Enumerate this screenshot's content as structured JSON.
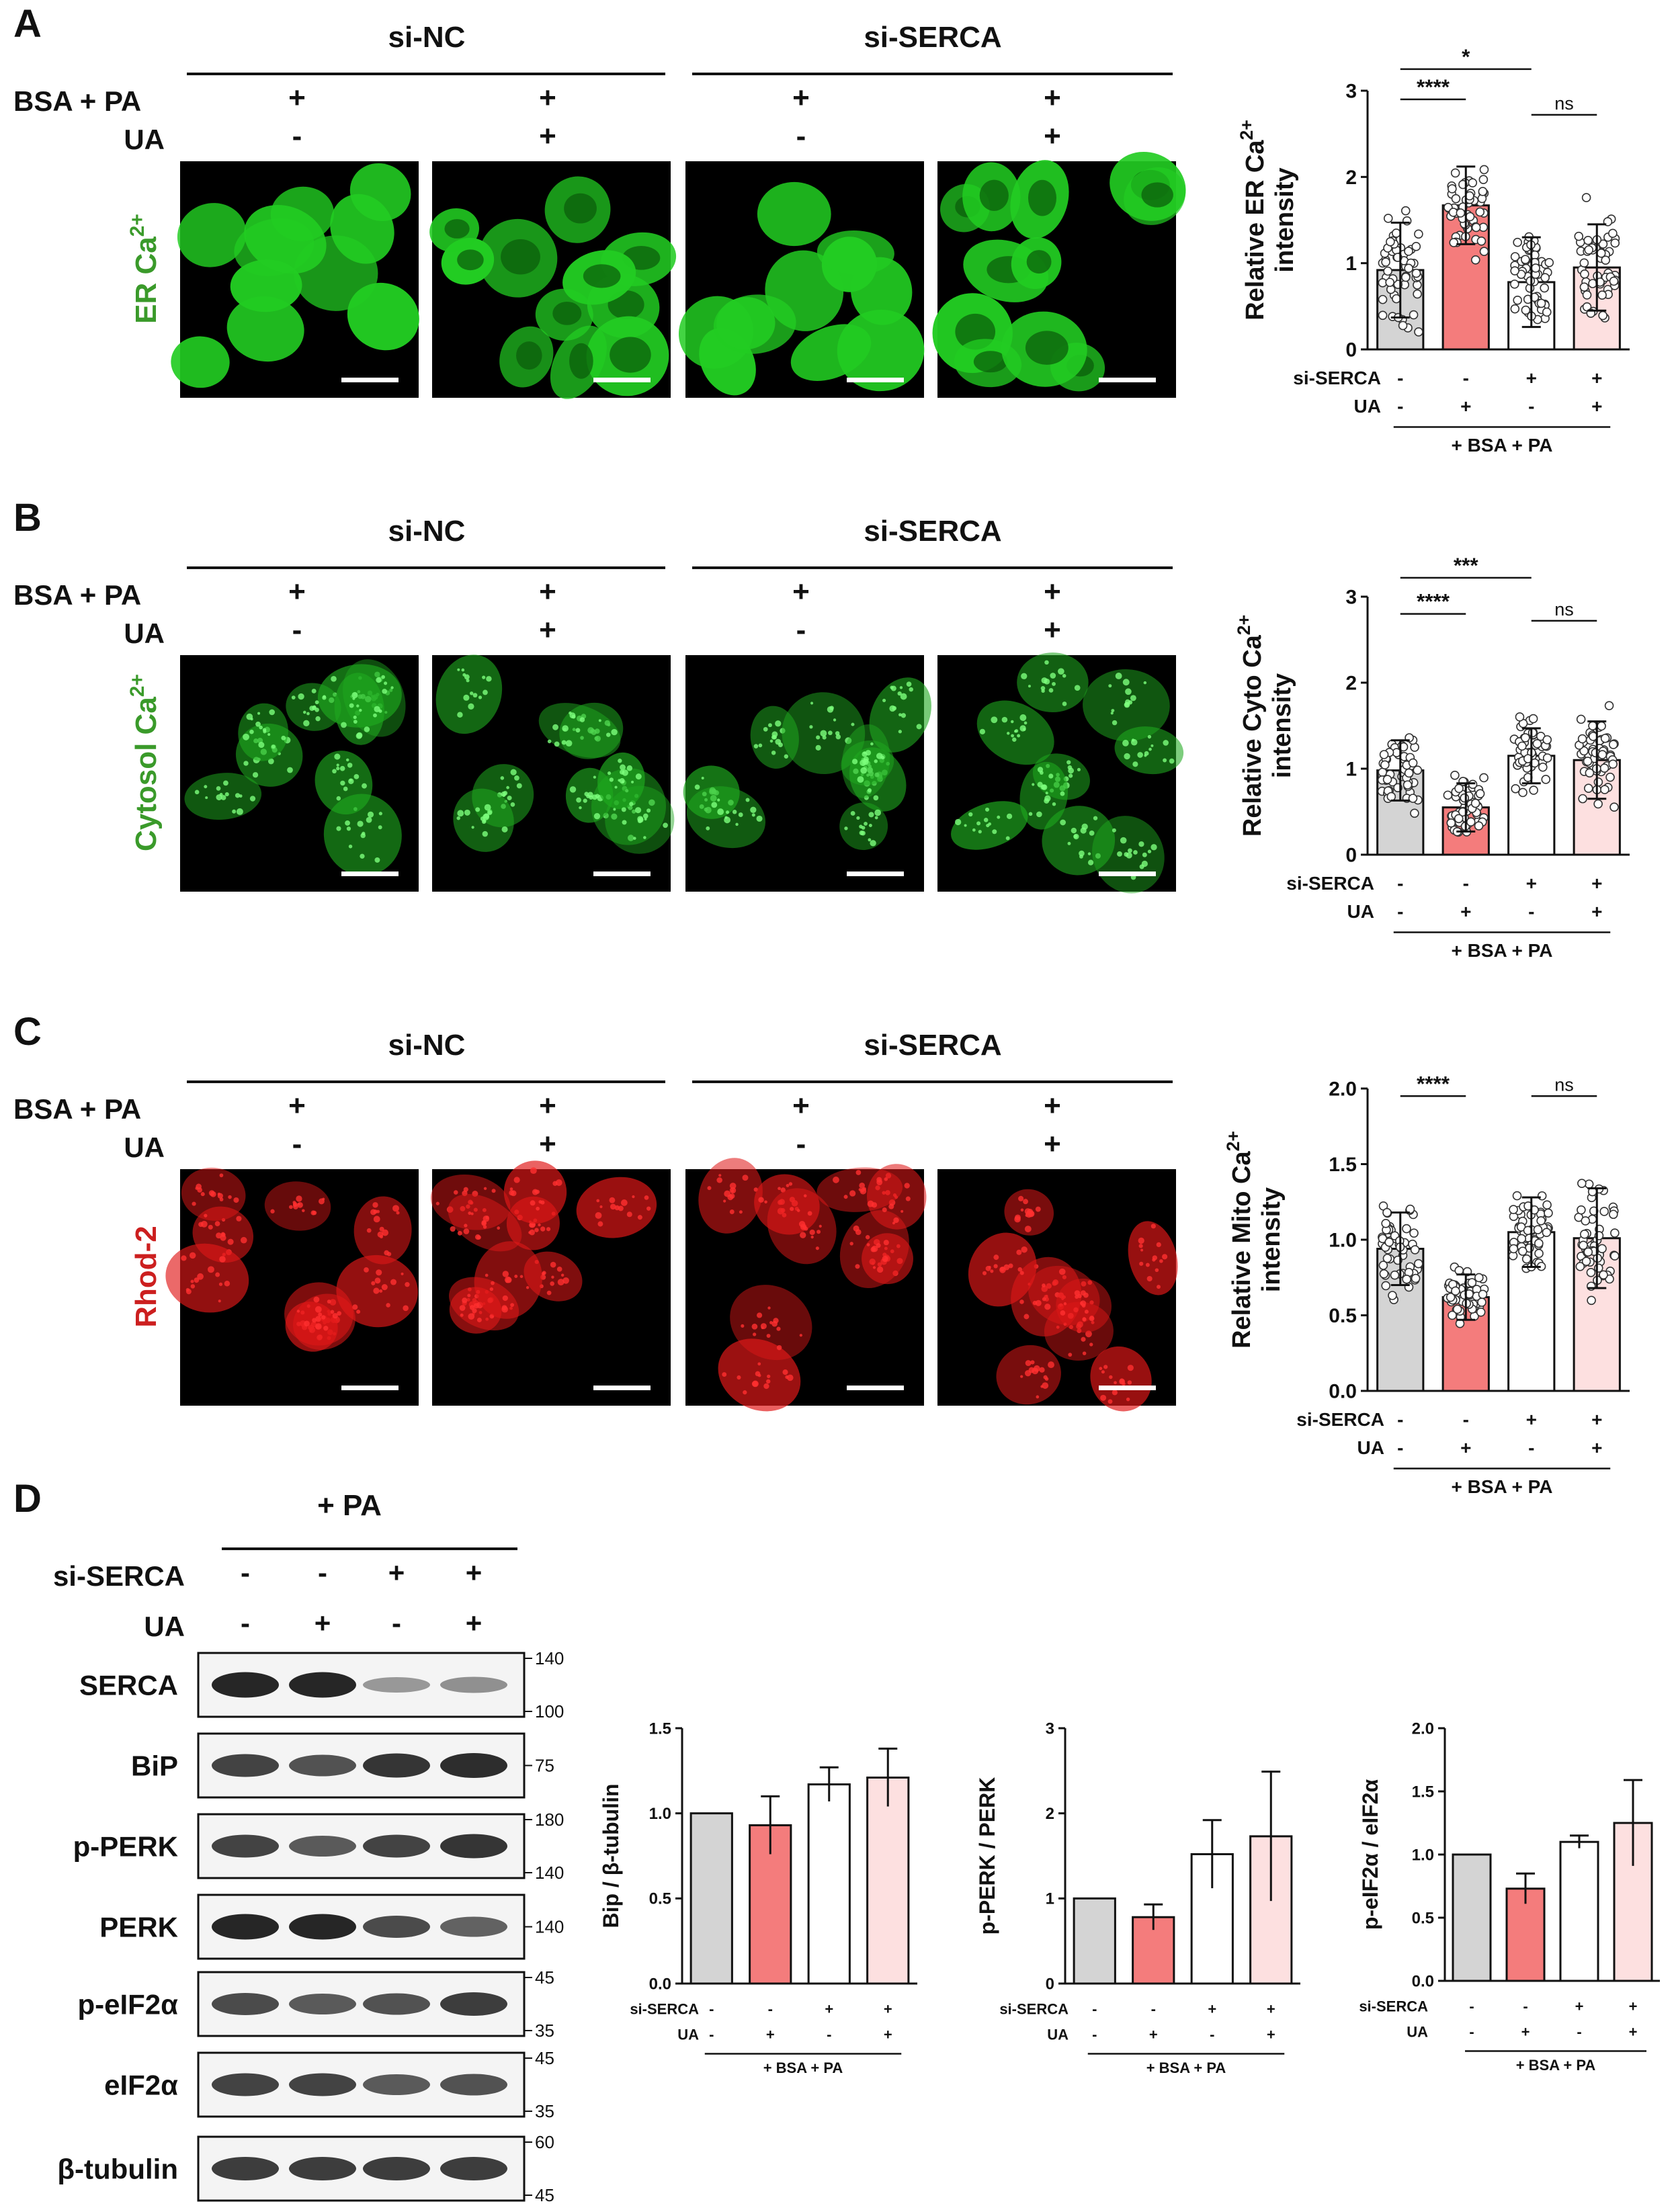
{
  "panels": [
    {
      "letter": "A",
      "group_left": "si-NC",
      "group_right": "si-SERCA",
      "row1_label": "BSA + PA",
      "row2_label": "UA",
      "row1_signs": [
        "+",
        "+",
        "+",
        "+"
      ],
      "row2_signs": [
        "-",
        "+",
        "-",
        "+"
      ],
      "stain_label": "ER Ca",
      "stain_sup": "2+",
      "stain_color": "#3a9a2a",
      "cell_color": "#22cc22",
      "speckle": false
    },
    {
      "letter": "B",
      "group_left": "si-NC",
      "group_right": "si-SERCA",
      "row1_label": "BSA + PA",
      "row2_label": "UA",
      "row1_signs": [
        "+",
        "+",
        "+",
        "+"
      ],
      "row2_signs": [
        "-",
        "+",
        "-",
        "+"
      ],
      "stain_label": "Cytosol Ca",
      "stain_sup": "2+",
      "stain_color": "#3a9a2a",
      "cell_color": "#1fa81f",
      "speckle": true
    },
    {
      "letter": "C",
      "group_left": "si-NC",
      "group_right": "si-SERCA",
      "row1_label": "BSA + PA",
      "row2_label": "UA",
      "row1_signs": [
        "+",
        "+",
        "+",
        "+"
      ],
      "row2_signs": [
        "-",
        "+",
        "-",
        "+"
      ],
      "stain_label": "Rhod-2",
      "stain_sup": "",
      "stain_color": "#cc1f1f",
      "cell_color": "#e01818",
      "speckle": true
    }
  ],
  "panel_d": {
    "letter": "D",
    "treatment": "+ PA",
    "row1_label": "si-SERCA",
    "row2_label": "UA",
    "row1_signs": [
      "-",
      "-",
      "+",
      "+"
    ],
    "row2_signs": [
      "-",
      "+",
      "-",
      "+"
    ],
    "blots": [
      {
        "name": "SERCA",
        "markers": [
          "140",
          "100"
        ],
        "intensity": [
          1.0,
          1.0,
          0.25,
          0.3
        ]
      },
      {
        "name": "BiP",
        "markers": [
          "75"
        ],
        "intensity": [
          0.8,
          0.7,
          0.9,
          0.95
        ]
      },
      {
        "name": "p-PERK",
        "markers": [
          "180",
          "140"
        ],
        "intensity": [
          0.8,
          0.65,
          0.8,
          0.9
        ]
      },
      {
        "name": "PERK",
        "markers": [
          "140"
        ],
        "intensity": [
          1.0,
          1.0,
          0.75,
          0.6
        ]
      },
      {
        "name": "p-eIF2α",
        "markers": [
          "45",
          "35"
        ],
        "intensity": [
          0.75,
          0.65,
          0.7,
          0.85
        ]
      },
      {
        "name": "eIF2α",
        "markers": [
          "45",
          "35"
        ],
        "intensity": [
          0.8,
          0.8,
          0.65,
          0.7
        ]
      },
      {
        "name": "β-tubulin",
        "markers": [
          "60",
          "45"
        ],
        "intensity": [
          0.85,
          0.85,
          0.85,
          0.85
        ]
      }
    ]
  },
  "legend_rows": {
    "row1": "si-SERCA",
    "row2": "UA",
    "row1_signs": [
      "-",
      "-",
      "+",
      "+"
    ],
    "row2_signs": [
      "-",
      "+",
      "-",
      "+"
    ],
    "group_label": "+ BSA + PA"
  },
  "bar_colors": [
    "#d4d4d4",
    "#f47c7c",
    "#ffffff",
    "#fde0e0"
  ],
  "chart_data": [
    {
      "type": "bar",
      "panel": "A",
      "categories": [
        "- / -",
        "- / +",
        "+ / -",
        "+ / +"
      ],
      "ylabel": "Relative ER Ca",
      "ylabel_sup": "2+",
      "ylabel2": "intensity",
      "ylim": [
        0,
        3
      ],
      "yticks": [
        "0",
        "1",
        "2",
        "3"
      ],
      "values": [
        0.92,
        1.67,
        0.78,
        0.95
      ],
      "errors": [
        0.55,
        0.45,
        0.52,
        0.5
      ],
      "sig": [
        {
          "label": "****",
          "from": 0,
          "to": 1,
          "level": 2.9
        },
        {
          "label": "*",
          "from": 0,
          "to": 2,
          "level": 3.25
        },
        {
          "label": "ns",
          "from": 2,
          "to": 3,
          "level": 2.72
        }
      ]
    },
    {
      "type": "bar",
      "panel": "B",
      "categories": [
        "- / -",
        "- / +",
        "+ / -",
        "+ / +"
      ],
      "ylabel": "Relative Cyto Ca",
      "ylabel_sup": "2+",
      "ylabel2": "intensity",
      "ylim": [
        0,
        3
      ],
      "yticks": [
        "0",
        "1",
        "2",
        "3"
      ],
      "values": [
        0.98,
        0.55,
        1.15,
        1.1
      ],
      "errors": [
        0.35,
        0.28,
        0.32,
        0.45
      ],
      "sig": [
        {
          "label": "****",
          "from": 0,
          "to": 1,
          "level": 2.8
        },
        {
          "label": "***",
          "from": 0,
          "to": 2,
          "level": 3.22
        },
        {
          "label": "ns",
          "from": 2,
          "to": 3,
          "level": 2.72
        }
      ]
    },
    {
      "type": "bar",
      "panel": "C",
      "categories": [
        "- / -",
        "- / +",
        "+ / -",
        "+ / +"
      ],
      "ylabel": "Relative Mito Ca",
      "ylabel_sup": "2+",
      "ylabel2": "intensity",
      "ylim": [
        0,
        2
      ],
      "yticks": [
        "0.0",
        "0.5",
        "1.0",
        "1.5",
        "2.0"
      ],
      "values": [
        0.94,
        0.62,
        1.05,
        1.01
      ],
      "errors": [
        0.24,
        0.15,
        0.23,
        0.33
      ],
      "sig": [
        {
          "label": "****",
          "from": 0,
          "to": 1,
          "level": 1.95
        },
        {
          "label": "ns",
          "from": 2,
          "to": 3,
          "level": 1.95
        }
      ]
    },
    {
      "type": "bar",
      "panel": "D1",
      "categories": [
        "- / -",
        "- / +",
        "+ / -",
        "+ / +"
      ],
      "ylabel": "Bip / β-tubulin",
      "ylim": [
        0,
        1.5
      ],
      "yticks": [
        "0.0",
        "0.5",
        "1.0",
        "1.5"
      ],
      "values": [
        1.0,
        0.93,
        1.17,
        1.21
      ],
      "errors": [
        0,
        0.17,
        0.1,
        0.17
      ]
    },
    {
      "type": "bar",
      "panel": "D2",
      "categories": [
        "- / -",
        "- / +",
        "+ / -",
        "+ / +"
      ],
      "ylabel": "p-PERK / PERK",
      "ylim": [
        0,
        3
      ],
      "yticks": [
        "0",
        "1",
        "2",
        "3"
      ],
      "values": [
        1.0,
        0.78,
        1.52,
        1.73
      ],
      "errors": [
        0,
        0.15,
        0.4,
        0.76
      ]
    },
    {
      "type": "bar",
      "panel": "D3",
      "categories": [
        "- / -",
        "- / +",
        "+ / -",
        "+ / +"
      ],
      "ylabel": "p-eIF2α / eIF2α",
      "ylim": [
        0,
        2
      ],
      "yticks": [
        "0.0",
        "0.5",
        "1.0",
        "1.5",
        "2.0"
      ],
      "values": [
        1.0,
        0.73,
        1.1,
        1.25
      ],
      "errors": [
        0,
        0.12,
        0.05,
        0.34
      ]
    }
  ]
}
